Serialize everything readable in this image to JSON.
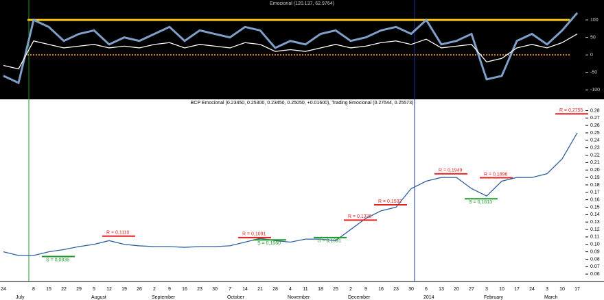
{
  "chart_data": [
    {
      "type": "line",
      "title": "Emocional (120.137, 62.9764)",
      "ylim": [
        -127,
        157
      ],
      "yticks": [
        -100,
        -50,
        0,
        50,
        100
      ],
      "reference_lines": [
        {
          "value": 100,
          "color": "#f5c518"
        },
        {
          "value": 0,
          "color": "#e08a2c"
        }
      ],
      "series": [
        {
          "color": "#7f9fc8",
          "values": [
            -60,
            -80,
            100,
            80,
            40,
            60,
            70,
            30,
            50,
            40,
            60,
            80,
            40,
            70,
            60,
            50,
            80,
            70,
            20,
            40,
            30,
            60,
            70,
            40,
            50,
            70,
            80,
            60,
            100,
            30,
            40,
            60,
            -70,
            -60,
            40,
            60,
            30,
            70,
            120
          ]
        },
        {
          "color": "#ffffff",
          "values": [
            -30,
            -40,
            40,
            30,
            20,
            25,
            30,
            20,
            25,
            20,
            30,
            35,
            20,
            30,
            25,
            20,
            35,
            30,
            10,
            15,
            10,
            20,
            30,
            20,
            25,
            35,
            40,
            30,
            45,
            20,
            25,
            30,
            -20,
            -10,
            20,
            30,
            20,
            35,
            60
          ]
        }
      ]
    },
    {
      "type": "line",
      "title": "BCP Emocional (0.23450, 0.25300, 0.23450, 0.25050, +0.01600), Trading Emocional (0.27544, 0.25573)",
      "categories": [
        "24",
        null,
        "8",
        "15",
        "22",
        "29",
        "5",
        "12",
        "19",
        "26",
        "2",
        "9",
        "16",
        "23",
        "30",
        "7",
        "14",
        "21",
        "28",
        "4",
        "11",
        "18",
        "25",
        "2",
        "9",
        "16",
        "23",
        "30",
        "6",
        "13",
        "20",
        "27",
        "3",
        "10",
        "17",
        "24",
        "3",
        "10",
        "17"
      ],
      "month_labels": [
        null,
        "July",
        null,
        null,
        null,
        null,
        "August",
        null,
        null,
        null,
        "September",
        null,
        null,
        null,
        null,
        "October",
        null,
        null,
        null,
        "November",
        null,
        null,
        null,
        "December",
        null,
        null,
        null,
        null,
        "2014",
        null,
        null,
        null,
        "February",
        null,
        null,
        null,
        "March",
        null,
        null
      ],
      "ylim": [
        0.05,
        0.285
      ],
      "yticks": [
        0.06,
        0.07,
        0.08,
        0.09,
        {
          "value": 0.1,
          "label": "0.10"
        },
        0.11,
        0.12,
        0.13,
        0.14,
        0.15,
        0.16,
        0.17,
        0.18,
        0.19,
        {
          "value": 0.2,
          "label": "0.20"
        },
        0.21,
        0.22,
        0.23,
        0.24,
        0.25,
        0.26,
        0.27,
        0.28
      ],
      "series": [
        {
          "color": "#2f5f9e",
          "values": [
            0.09,
            0.085,
            0.085,
            0.09,
            0.093,
            0.097,
            0.1,
            0.105,
            0.1,
            0.098,
            0.097,
            0.097,
            0.096,
            0.097,
            0.097,
            0.098,
            0.103,
            0.108,
            0.105,
            0.103,
            0.107,
            0.107,
            0.105,
            0.12,
            0.135,
            0.145,
            0.15,
            0.175,
            0.185,
            0.19,
            0.19,
            0.175,
            0.165,
            0.185,
            0.19,
            0.19,
            0.195,
            0.215,
            0.25
          ]
        }
      ],
      "levels": [
        null,
        null,
        null,
        {
          "text": "S = 0,0836",
          "value": 0.0836,
          "color": "#1f9a2a"
        },
        null,
        null,
        null,
        {
          "text": "R = 0,1110",
          "value": 0.111,
          "color": "#e02020"
        },
        null,
        null,
        null,
        null,
        null,
        null,
        null,
        null,
        {
          "text": "R = 0,1091",
          "value": 0.1091,
          "color": "#e02020"
        },
        {
          "text": "S = 0,1060",
          "value": 0.106,
          "color": "#1f9a2a"
        },
        null,
        null,
        null,
        {
          "text": "S = 0,1091",
          "value": 0.1091,
          "color": "#1f9a2a"
        },
        null,
        {
          "text": "R = 0,1326",
          "value": 0.1326,
          "color": "#e02020"
        },
        null,
        {
          "text": "R = 0,1532",
          "value": 0.1532,
          "color": "#e02020"
        },
        null,
        null,
        null,
        {
          "text": "R = 0,1949",
          "value": 0.1949,
          "color": "#e02020"
        },
        null,
        {
          "text": "S = 0,1613",
          "value": 0.1613,
          "color": "#1f9a2a"
        },
        {
          "text": "R = 0,1896",
          "value": 0.1896,
          "color": "#e02020"
        },
        null,
        null,
        null,
        null,
        {
          "text": "R = 0,2755",
          "value": 0.2755,
          "color": "#e02020"
        },
        null
      ]
    }
  ]
}
